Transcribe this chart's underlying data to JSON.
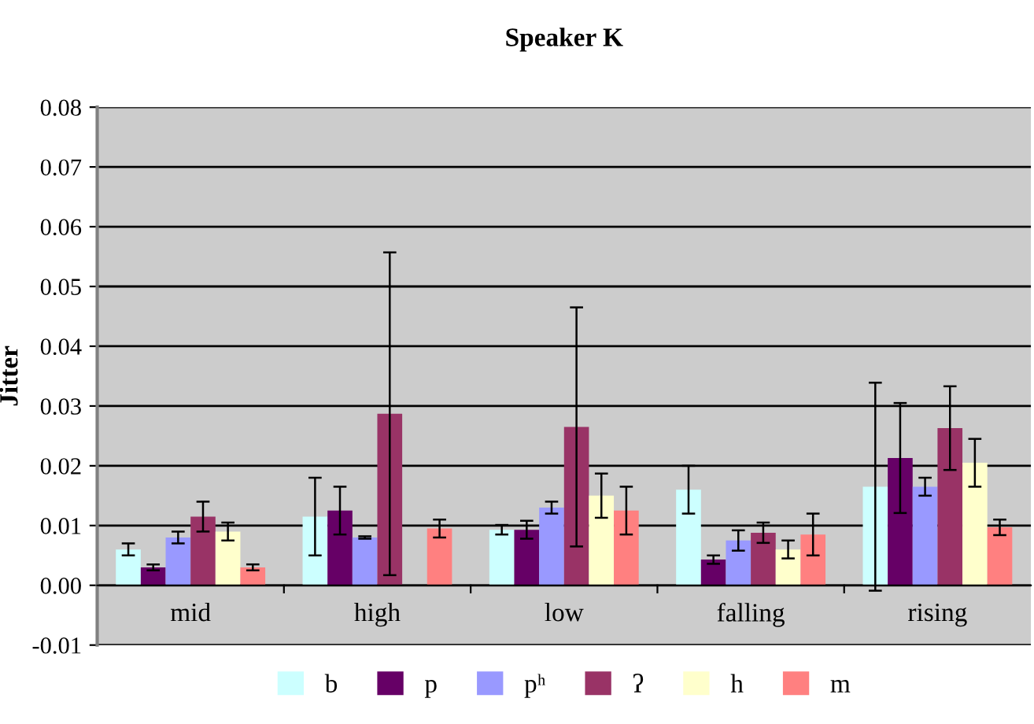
{
  "chart_data": {
    "type": "bar",
    "title": "Speaker K",
    "ylabel": "Jitter",
    "categories": [
      "mid",
      "high",
      "low",
      "falling",
      "rising"
    ],
    "series": [
      {
        "name": "b",
        "color": "#ccffff",
        "values": [
          0.006,
          0.0115,
          0.0093,
          0.016,
          0.0165
        ],
        "errors": [
          0.001,
          0.0065,
          0.0008,
          0.004,
          0.0174
        ]
      },
      {
        "name": "p",
        "color": "#660066",
        "values": [
          0.003,
          0.0125,
          0.0093,
          0.0043,
          0.0213
        ],
        "errors": [
          0.0005,
          0.004,
          0.0015,
          0.0007,
          0.0092
        ]
      },
      {
        "name": "pʰ",
        "color": "#9999ff",
        "values": [
          0.008,
          0.008,
          0.013,
          0.0075,
          0.0165
        ],
        "errors": [
          0.001,
          0.0002,
          0.001,
          0.0017,
          0.0015
        ]
      },
      {
        "name": "ʔ",
        "color": "#993366",
        "values": [
          0.0115,
          0.0287,
          0.0265,
          0.0088,
          0.0263
        ],
        "errors": [
          0.0025,
          0.027,
          0.02,
          0.0017,
          0.007
        ]
      },
      {
        "name": "h",
        "color": "#ffffcc",
        "values": [
          0.009,
          null,
          0.015,
          0.006,
          0.0205
        ],
        "errors": [
          0.0015,
          null,
          0.0037,
          0.0015,
          0.004
        ]
      },
      {
        "name": "m",
        "color": "#ff8080",
        "values": [
          0.003,
          0.0095,
          0.0125,
          0.0085,
          0.0097
        ],
        "errors": [
          0.0005,
          0.0015,
          0.004,
          0.0035,
          0.0013
        ]
      }
    ],
    "ylim": [
      -0.01,
      0.08
    ],
    "yticks": [
      {
        "value": -0.01,
        "label": "-0.01"
      },
      {
        "value": 0,
        "label": "0.00"
      },
      {
        "value": 0.01,
        "label": "0.01"
      },
      {
        "value": 0.02,
        "label": "0.02"
      },
      {
        "value": 0.03,
        "label": "0.03"
      },
      {
        "value": 0.04,
        "label": "0.04"
      },
      {
        "value": 0.05,
        "label": "0.05"
      },
      {
        "value": 0.06,
        "label": "0.06"
      },
      {
        "value": 0.07,
        "label": "0.07"
      },
      {
        "value": 0.08,
        "label": "0.08"
      }
    ],
    "grid": "y",
    "legend": "bottom"
  }
}
